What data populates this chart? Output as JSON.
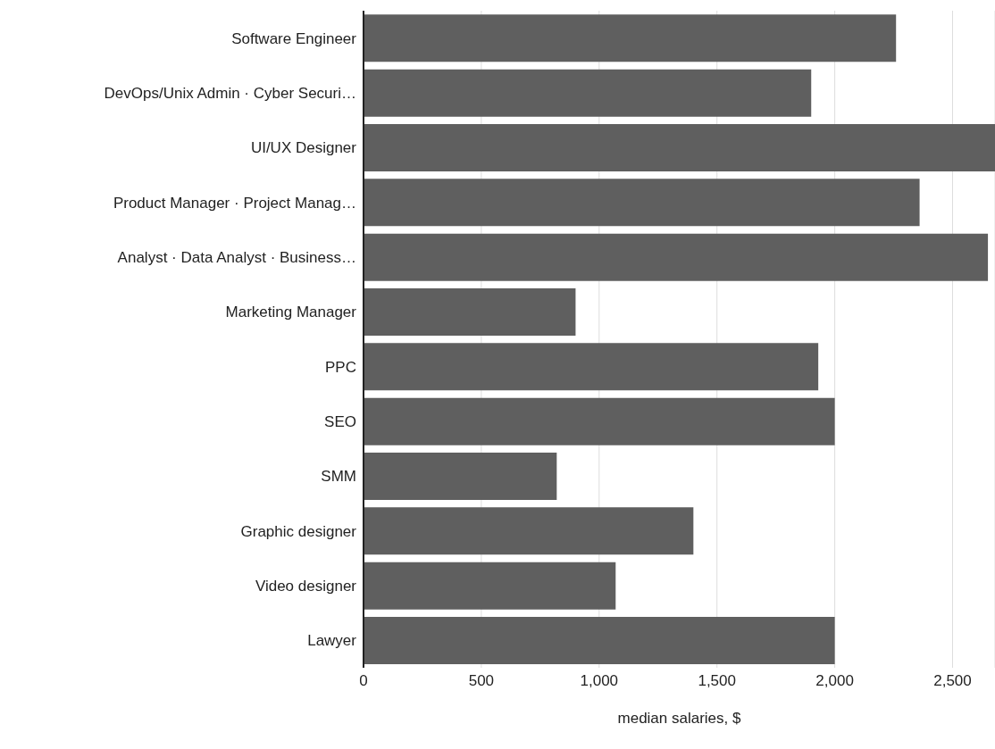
{
  "chart_data": {
    "type": "bar",
    "orientation": "horizontal",
    "xlabel": "median salaries, $",
    "categories": [
      "Software Engineer",
      "DevOps/Unix Admin · Cyber Securi…",
      "UI/UX Designer",
      "Product Manager · Project Manag…",
      "Analyst · Data Analyst · Business…",
      "Marketing Manager",
      "PPC",
      "SEO",
      "SMM",
      "Graphic designer",
      "Video designer",
      "Lawyer"
    ],
    "values": [
      2260,
      1900,
      2680,
      2360,
      2650,
      900,
      1930,
      2000,
      820,
      1400,
      1070,
      2000
    ],
    "color": "#5f5f5f",
    "xlim": [
      0,
      2680
    ],
    "xticks": [
      0,
      500,
      {
        "value": 1000,
        "label": "1,000"
      },
      {
        "value": 1500,
        "label": "1,500"
      },
      {
        "value": 2000,
        "label": "2,000"
      },
      {
        "value": 2500,
        "label": "2,500"
      }
    ],
    "grid": "x"
  }
}
